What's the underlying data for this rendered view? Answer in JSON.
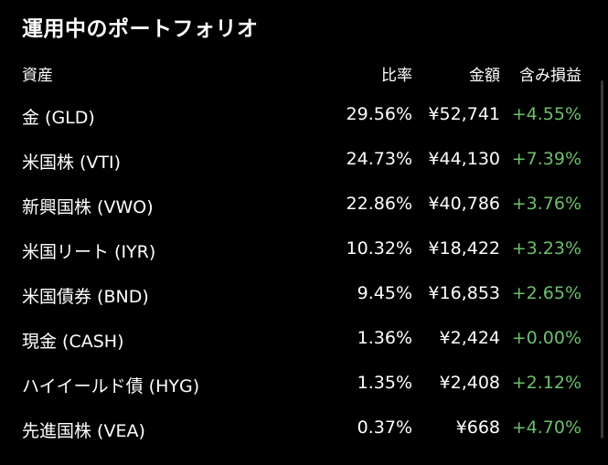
{
  "title": "運用中のポートフォリオ",
  "columns": {
    "asset": "資産",
    "ratio": "比率",
    "amount": "金額",
    "pl": "含み損益"
  },
  "rows": [
    {
      "asset": "金 (GLD)",
      "ratio": "29.56%",
      "amount": "¥52,741",
      "pl": "+4.55%"
    },
    {
      "asset": "米国株 (VTI)",
      "ratio": "24.73%",
      "amount": "¥44,130",
      "pl": "+7.39%"
    },
    {
      "asset": "新興国株 (VWO)",
      "ratio": "22.86%",
      "amount": "¥40,786",
      "pl": "+3.76%"
    },
    {
      "asset": "米国リート (IYR)",
      "ratio": "10.32%",
      "amount": "¥18,422",
      "pl": "+3.23%"
    },
    {
      "asset": "米国債券 (BND)",
      "ratio": "9.45%",
      "amount": "¥16,853",
      "pl": "+2.65%"
    },
    {
      "asset": "現金 (CASH)",
      "ratio": "1.36%",
      "amount": "¥2,424",
      "pl": "+0.00%"
    },
    {
      "asset": "ハイイールド債 (HYG)",
      "ratio": "1.35%",
      "amount": "¥2,408",
      "pl": "+2.12%"
    },
    {
      "asset": "先進国株 (VEA)",
      "ratio": "0.37%",
      "amount": "¥668",
      "pl": "+4.70%"
    }
  ],
  "colors": {
    "background": "#000000",
    "text": "#ffffff",
    "positive": "#6dbf6d"
  }
}
